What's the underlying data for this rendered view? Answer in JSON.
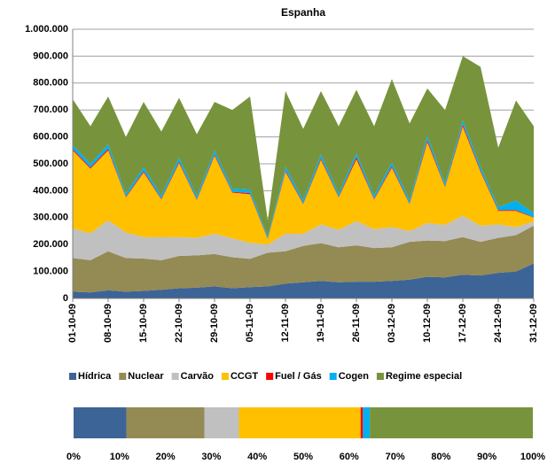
{
  "chart_data": [
    {
      "type": "area",
      "title": "Espanha",
      "stacked": true,
      "categories": [
        "01-10-09",
        null,
        "08-10-09",
        null,
        "15-10-09",
        null,
        "22-10-09",
        null,
        "29-10-09",
        null,
        "05-11-09",
        null,
        "12-11-09",
        null,
        "19-11-09",
        null,
        "26-11-09",
        null,
        "03-12-09",
        null,
        "10-12-09",
        null,
        "17-12-09",
        null,
        "24-12-09",
        null,
        "31-12-09"
      ],
      "series": [
        {
          "name": "Hídrica",
          "color": "#3c6496",
          "values": [
            25000,
            22000,
            30000,
            25000,
            28000,
            32000,
            38000,
            40000,
            45000,
            38000,
            42000,
            45000,
            55000,
            60000,
            65000,
            60000,
            62000,
            62000,
            65000,
            70000,
            80000,
            78000,
            88000,
            85000,
            95000,
            100000,
            130000
          ]
        },
        {
          "name": "Nuclear",
          "color": "#948a54",
          "values": [
            125000,
            120000,
            145000,
            125000,
            120000,
            110000,
            120000,
            120000,
            120000,
            115000,
            105000,
            125000,
            120000,
            135000,
            140000,
            130000,
            135000,
            125000,
            125000,
            140000,
            135000,
            135000,
            140000,
            125000,
            130000,
            135000,
            140000
          ]
        },
        {
          "name": "Carvão",
          "color": "#c0c0c0",
          "values": [
            110000,
            100000,
            115000,
            95000,
            80000,
            85000,
            70000,
            65000,
            75000,
            70000,
            60000,
            30000,
            65000,
            45000,
            70000,
            65000,
            90000,
            70000,
            75000,
            40000,
            65000,
            60000,
            80000,
            60000,
            50000,
            30000,
            15000
          ]
        },
        {
          "name": "CCGT",
          "color": "#ffc000",
          "values": [
            290000,
            240000,
            260000,
            130000,
            240000,
            140000,
            275000,
            140000,
            290000,
            170000,
            180000,
            20000,
            230000,
            110000,
            240000,
            120000,
            230000,
            110000,
            220000,
            100000,
            300000,
            140000,
            330000,
            200000,
            50000,
            60000,
            15000
          ]
        },
        {
          "name": "Fuel / Gás",
          "color": "#ff0000",
          "values": [
            5000,
            4000,
            6000,
            3000,
            5000,
            3000,
            5000,
            3000,
            5000,
            3000,
            4000,
            2000,
            5000,
            3000,
            5000,
            3000,
            8000,
            3000,
            6000,
            3000,
            8000,
            3000,
            8000,
            5000,
            3000,
            3000,
            2000
          ]
        },
        {
          "name": "Cogen",
          "color": "#00b0f0",
          "values": [
            15000,
            14000,
            16000,
            12000,
            14000,
            12000,
            15000,
            12000,
            14000,
            12000,
            13000,
            8000,
            14000,
            12000,
            14000,
            12000,
            14000,
            12000,
            14000,
            12000,
            15000,
            12000,
            15000,
            14000,
            12000,
            35000,
            15000
          ]
        },
        {
          "name": "Regime especial",
          "color": "#77933c",
          "values": [
            170000,
            140000,
            178000,
            210000,
            243000,
            238000,
            222000,
            230000,
            181000,
            292000,
            346000,
            60000,
            281000,
            265000,
            236000,
            250000,
            236000,
            258000,
            310000,
            285000,
            177000,
            272000,
            239000,
            371000,
            220000,
            372000,
            323000
          ]
        }
      ],
      "ylim": [
        0,
        1000000
      ],
      "yticks": [
        {
          "value": 0,
          "label": "0"
        },
        {
          "value": 100000,
          "label": "100.000"
        },
        {
          "value": 200000,
          "label": "200.000"
        },
        {
          "value": 300000,
          "label": "300.000"
        },
        {
          "value": 400000,
          "label": "400.000"
        },
        {
          "value": 500000,
          "label": "500.000"
        },
        {
          "value": 600000,
          "label": "600.000"
        },
        {
          "value": 700000,
          "label": "700.000"
        },
        {
          "value": 800000,
          "label": "800.000"
        },
        {
          "value": 900000,
          "label": "900.000"
        },
        {
          "value": 1000000,
          "label": "1.000.000"
        }
      ],
      "grid": true,
      "legend": "bottom"
    },
    {
      "type": "bar",
      "orientation": "horizontal",
      "stacked": true,
      "series": [
        {
          "color": "#3c6496",
          "values": [
            11.5
          ]
        },
        {
          "color": "#948a54",
          "values": [
            17
          ]
        },
        {
          "color": "#c0c0c0",
          "values": [
            7.5
          ]
        },
        {
          "color": "#ffc000",
          "values": [
            26.5
          ]
        },
        {
          "color": "#ff0000",
          "values": [
            0.5
          ]
        },
        {
          "color": "#00b0f0",
          "values": [
            1.5
          ]
        },
        {
          "color": "#77933c",
          "values": [
            35.5
          ]
        }
      ],
      "xlim": [
        0,
        100
      ],
      "xticks": [
        {
          "value": 0,
          "label": "0%"
        },
        {
          "value": 10,
          "label": "10%"
        },
        {
          "value": 20,
          "label": "20%"
        },
        {
          "value": 30,
          "label": "30%"
        },
        {
          "value": 40,
          "label": "40%"
        },
        {
          "value": 50,
          "label": "50%"
        },
        {
          "value": 60,
          "label": "60%"
        },
        {
          "value": 70,
          "label": "70%"
        },
        {
          "value": 80,
          "label": "80%"
        },
        {
          "value": 90,
          "label": "90%"
        },
        {
          "value": 100,
          "label": "100%"
        }
      ]
    }
  ]
}
